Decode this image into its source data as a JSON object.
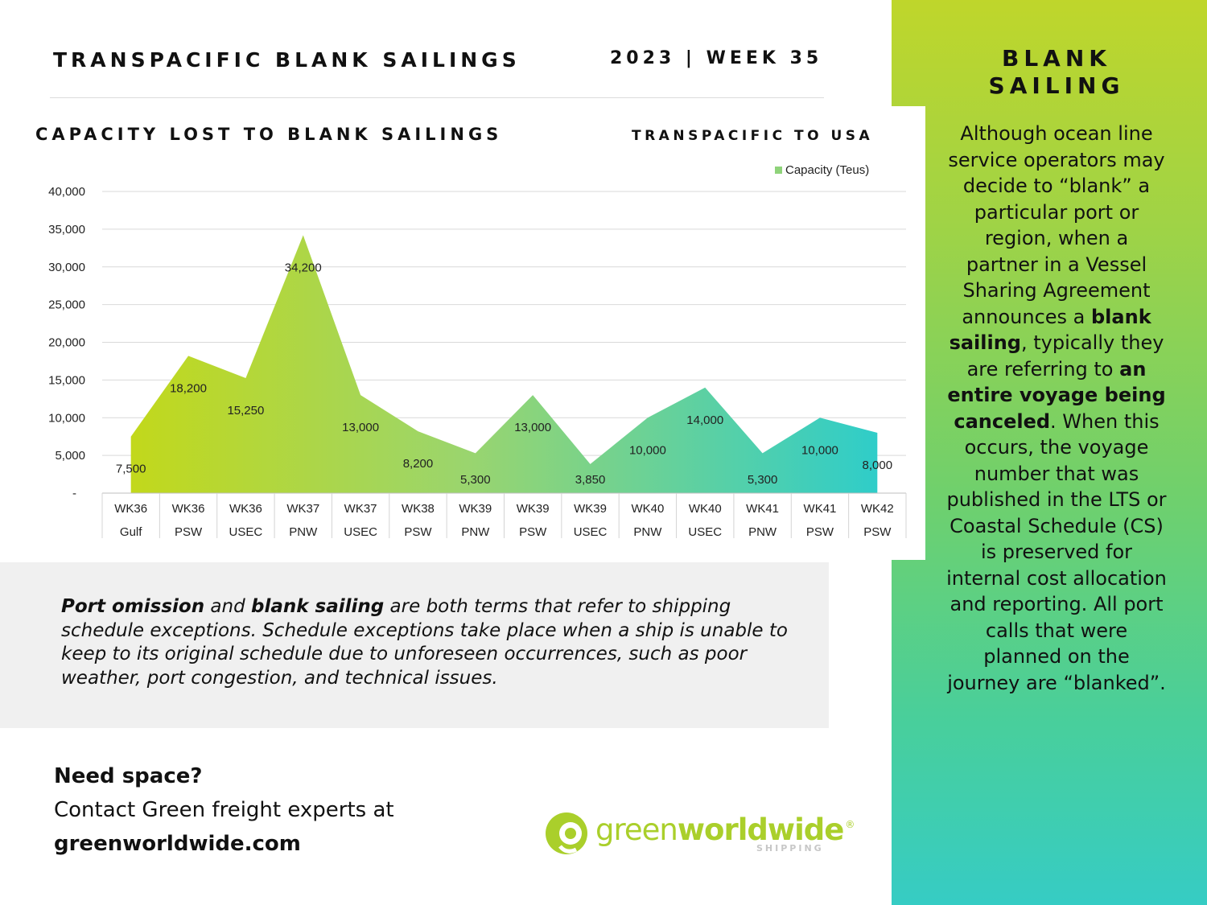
{
  "header": {
    "title": "TRANSPACIFIC BLANK SAILINGS",
    "date": "2023 | WEEK 35"
  },
  "chart_header": {
    "title": "CAPACITY LOST TO BLANK SAILINGS",
    "subtitle": "TRANSPACIFIC TO USA"
  },
  "chart_data": {
    "type": "area",
    "title": "CAPACITY LOST TO BLANK SAILINGS",
    "subtitle": "TRANSPACIFIC TO USA",
    "categories": [
      [
        "WK36",
        "Gulf"
      ],
      [
        "WK36",
        "PSW"
      ],
      [
        "WK36",
        "USEC"
      ],
      [
        "WK37",
        "PNW"
      ],
      [
        "WK37",
        "USEC"
      ],
      [
        "WK38",
        "PSW"
      ],
      [
        "WK39",
        "PNW"
      ],
      [
        "WK39",
        "PSW"
      ],
      [
        "WK39",
        "USEC"
      ],
      [
        "WK40",
        "PNW"
      ],
      [
        "WK40",
        "USEC"
      ],
      [
        "WK41",
        "PNW"
      ],
      [
        "WK41",
        "PSW"
      ],
      [
        "WK42",
        "PSW"
      ]
    ],
    "series": [
      {
        "name": "Capacity (Teus)",
        "values": [
          7500,
          18200,
          15250,
          34200,
          13000,
          8200,
          5300,
          13000,
          3850,
          10000,
          14000,
          5300,
          10000,
          8000
        ]
      }
    ],
    "data_labels": [
      "7,500",
      "18,200",
      "15,250",
      "34,200",
      "13,000",
      "8,200",
      "5,300",
      "13,000",
      "3,850",
      "10,000",
      "14,000",
      "5,300",
      "10,000",
      "8,000"
    ],
    "ylim": [
      0,
      40000
    ],
    "y_ticks": [
      "-",
      "5,000",
      "10,000",
      "15,000",
      "20,000",
      "25,000",
      "30,000",
      "35,000",
      "40,000"
    ],
    "grid": true,
    "legend": "top-right",
    "colors": {
      "start": "#c2d81b",
      "mid": "#9ad56e",
      "end": "#2fcdc9",
      "legend": "#8fd37a"
    }
  },
  "sidebar": {
    "title_line1": "BLANK",
    "title_line2": "SAILING",
    "body": [
      {
        "text": "Although ocean line service operators may decide to “blank” a particular port or region, when a partner in a Vessel Sharing Agreement announces a ",
        "bold": false
      },
      {
        "text": "blank sailing",
        "bold": true
      },
      {
        "text": ", typically they are referring to ",
        "bold": false
      },
      {
        "text": "an entire voyage being canceled",
        "bold": true
      },
      {
        "text": ". When this occurs, the voyage number that was published in the LTS or Coastal Schedule (CS) is preserved for internal cost allocation and reporting. All port calls that were planned on the journey are “blanked”.",
        "bold": false
      }
    ]
  },
  "info": {
    "parts": [
      {
        "text": "Port omission",
        "bold": true
      },
      {
        "text": " and ",
        "bold": false
      },
      {
        "text": "blank sailing",
        "bold": true
      },
      {
        "text": " are both terms that refer to shipping schedule exceptions. Schedule exceptions take place when a ship is unable to keep to its original schedule due to unforeseen occurrences, such as poor weather, port congestion, and technical issues.",
        "bold": false
      }
    ]
  },
  "cta": {
    "heading": "Need space?",
    "line": "Contact Green freight experts at",
    "url": "greenworldwide.com"
  },
  "logo": {
    "word_light": "green",
    "word_bold": "worldwide",
    "mark": "®",
    "sub": "SHIPPING",
    "color": "#aacf2b"
  }
}
